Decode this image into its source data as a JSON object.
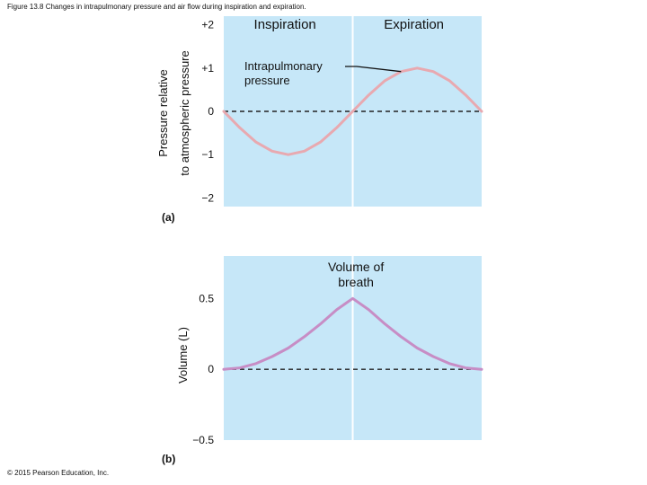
{
  "caption": "Figure 13.8 Changes in intrapulmonary pressure and air flow during inspiration and expiration.",
  "copyright": "© 2015 Pearson Education, Inc.",
  "colors": {
    "plot_bg": "#c6e7f8",
    "pressure_curve": "#e8a9b0",
    "volume_curve": "#c78dc5",
    "baseline": "#222222",
    "divider": "#ffffff"
  },
  "chart_data": [
    {
      "type": "line",
      "panel_label": "(a)",
      "title": "",
      "xlabel": "",
      "ylabel": "Pressure relative to atmospheric pressure",
      "ylabel_lines": [
        "Pressure relative",
        "to atmospheric pressure"
      ],
      "phase_labels": [
        "Inspiration",
        "Expiration"
      ],
      "yticks": [
        "+2",
        "+1",
        "0",
        "−1",
        "−2"
      ],
      "ytick_values": [
        2,
        1,
        0,
        -1,
        -2
      ],
      "ylim": [
        -2.2,
        2.2
      ],
      "xlim": [
        0,
        4
      ],
      "reference_line_y": 0,
      "phase_boundary_x": 2,
      "series": [
        {
          "name": "Intrapulmonary pressure",
          "name_lines": [
            "Intrapulmonary",
            "pressure"
          ],
          "x": [
            0,
            0.25,
            0.5,
            0.75,
            1.0,
            1.25,
            1.5,
            1.75,
            2.0,
            2.25,
            2.5,
            2.75,
            3.0,
            3.25,
            3.5,
            3.75,
            4.0
          ],
          "y": [
            0,
            -0.38,
            -0.71,
            -0.92,
            -1.0,
            -0.92,
            -0.71,
            -0.38,
            0,
            0.38,
            0.71,
            0.92,
            1.0,
            0.92,
            0.71,
            0.38,
            0
          ]
        }
      ]
    },
    {
      "type": "line",
      "panel_label": "(b)",
      "title": "",
      "xlabel": "",
      "ylabel": "Volume (L)",
      "yticks": [
        "0.5",
        "0",
        "−0.5"
      ],
      "ytick_values": [
        0.5,
        0,
        -0.5
      ],
      "ylim": [
        -0.5,
        0.8
      ],
      "xlim": [
        0,
        4
      ],
      "reference_line_y": 0,
      "phase_boundary_x": 2,
      "series": [
        {
          "name": "Volume of breath",
          "name_lines": [
            "Volume of",
            "breath"
          ],
          "x": [
            0,
            0.25,
            0.5,
            0.75,
            1.0,
            1.25,
            1.5,
            1.75,
            2.0,
            2.25,
            2.5,
            2.75,
            3.0,
            3.25,
            3.5,
            3.75,
            4.0
          ],
          "y": [
            0,
            0.01,
            0.04,
            0.09,
            0.15,
            0.23,
            0.32,
            0.42,
            0.5,
            0.42,
            0.32,
            0.23,
            0.15,
            0.09,
            0.04,
            0.01,
            0
          ]
        }
      ]
    }
  ]
}
